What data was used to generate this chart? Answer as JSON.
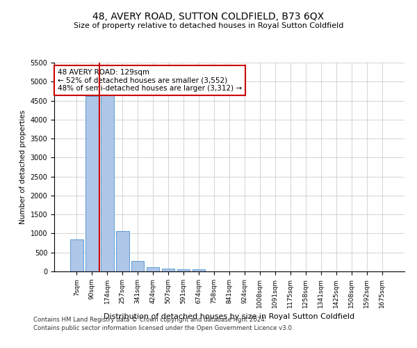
{
  "title": "48, AVERY ROAD, SUTTON COLDFIELD, B73 6QX",
  "subtitle": "Size of property relative to detached houses in Royal Sutton Coldfield",
  "xlabel": "Distribution of detached houses by size in Royal Sutton Coldfield",
  "ylabel": "Number of detached properties",
  "footnote1": "Contains HM Land Registry data © Crown copyright and database right 2024.",
  "footnote2": "Contains public sector information licensed under the Open Government Licence v3.0.",
  "annotation_title": "48 AVERY ROAD: 129sqm",
  "annotation_line1": "← 52% of detached houses are smaller (3,552)",
  "annotation_line2": "48% of semi-detached houses are larger (3,312) →",
  "categories": [
    "7sqm",
    "90sqm",
    "174sqm",
    "257sqm",
    "341sqm",
    "424sqm",
    "507sqm",
    "591sqm",
    "674sqm",
    "758sqm",
    "841sqm",
    "924sqm",
    "1008sqm",
    "1091sqm",
    "1175sqm",
    "1258sqm",
    "1341sqm",
    "1425sqm",
    "1508sqm",
    "1592sqm",
    "1675sqm"
  ],
  "values": [
    850,
    4620,
    4640,
    1060,
    280,
    110,
    80,
    60,
    50,
    0,
    0,
    0,
    0,
    0,
    0,
    0,
    0,
    0,
    0,
    0,
    0
  ],
  "bar_color": "#aec6e8",
  "bar_edge_color": "#5b9bd5",
  "red_line_xindex": 1.5,
  "ylim": [
    0,
    5500
  ],
  "yticks": [
    0,
    500,
    1000,
    1500,
    2000,
    2500,
    3000,
    3500,
    4000,
    4500,
    5000,
    5500
  ],
  "annotation_box_color": "white",
  "annotation_box_edge": "#cc0000",
  "red_line_color": "#cc0000",
  "background_color": "white",
  "grid_color": "#cccccc"
}
